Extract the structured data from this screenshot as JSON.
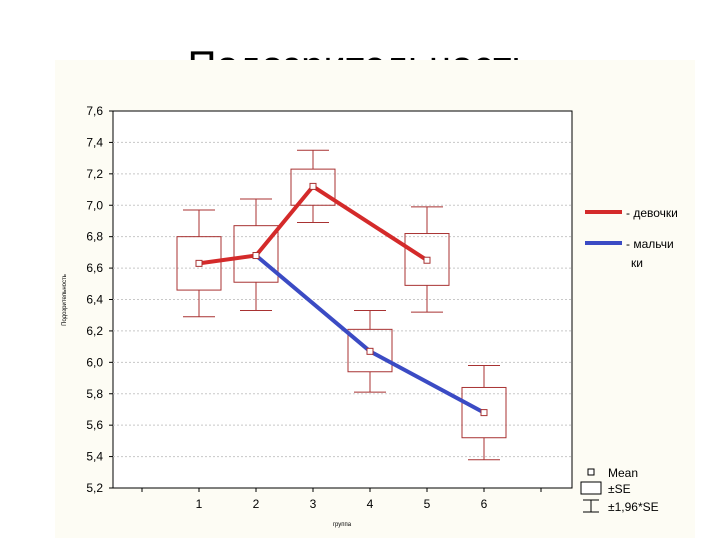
{
  "title": "Подозрительность",
  "chart_data": {
    "type": "line",
    "xlabel": "группа",
    "ylabel": "Подозрительность",
    "ylim": [
      5.2,
      7.6
    ],
    "yticks": [
      "7,6",
      "7,4",
      "7,2",
      "7,0",
      "6,8",
      "6,6",
      "6,4",
      "6,2",
      "6,0",
      "5,8",
      "5,6",
      "5,4",
      "5,2"
    ],
    "xticks": [
      "1",
      "2",
      "3",
      "4",
      "5",
      "6"
    ],
    "grid": true,
    "series": [
      {
        "name": "- девочки",
        "color": "#d42a2a",
        "points": [
          {
            "x": 1,
            "mean": 6.63,
            "se_lo": 6.46,
            "se_hi": 6.8,
            "ci_lo": 6.29,
            "ci_hi": 6.97
          },
          {
            "x": 2,
            "mean": 6.68,
            "se_lo": 6.51,
            "se_hi": 6.87,
            "ci_lo": 6.33,
            "ci_hi": 7.04
          },
          {
            "x": 3,
            "mean": 7.12,
            "se_lo": 7.0,
            "se_hi": 7.23,
            "ci_lo": 6.89,
            "ci_hi": 7.35
          },
          {
            "x": 5,
            "mean": 6.65,
            "se_lo": 6.49,
            "se_hi": 6.82,
            "ci_lo": 6.32,
            "ci_hi": 6.99
          }
        ]
      },
      {
        "name": "- мальчики",
        "color": "#3b4bc4",
        "points": [
          {
            "x": 2,
            "mean": 6.68
          },
          {
            "x": 4,
            "mean": 6.07,
            "se_lo": 5.94,
            "se_hi": 6.21,
            "ci_lo": 5.81,
            "ci_hi": 6.33
          },
          {
            "x": 6,
            "mean": 5.68,
            "se_lo": 5.52,
            "se_hi": 5.84,
            "ci_lo": 5.38,
            "ci_hi": 5.98
          }
        ]
      }
    ],
    "legend": {
      "position": "right",
      "girls_label": "- девочки",
      "boys_label_line1": "- мальчи",
      "boys_label_line2": "ки",
      "mean_label": "Mean",
      "se_label": "±SE",
      "ci_label": "±1,96*SE"
    },
    "colors": {
      "box": "#a83232",
      "girls": "#d42a2a",
      "boys": "#3b4bc4",
      "grid": "#c8c8c8",
      "panel": "#fdfcf4"
    }
  }
}
